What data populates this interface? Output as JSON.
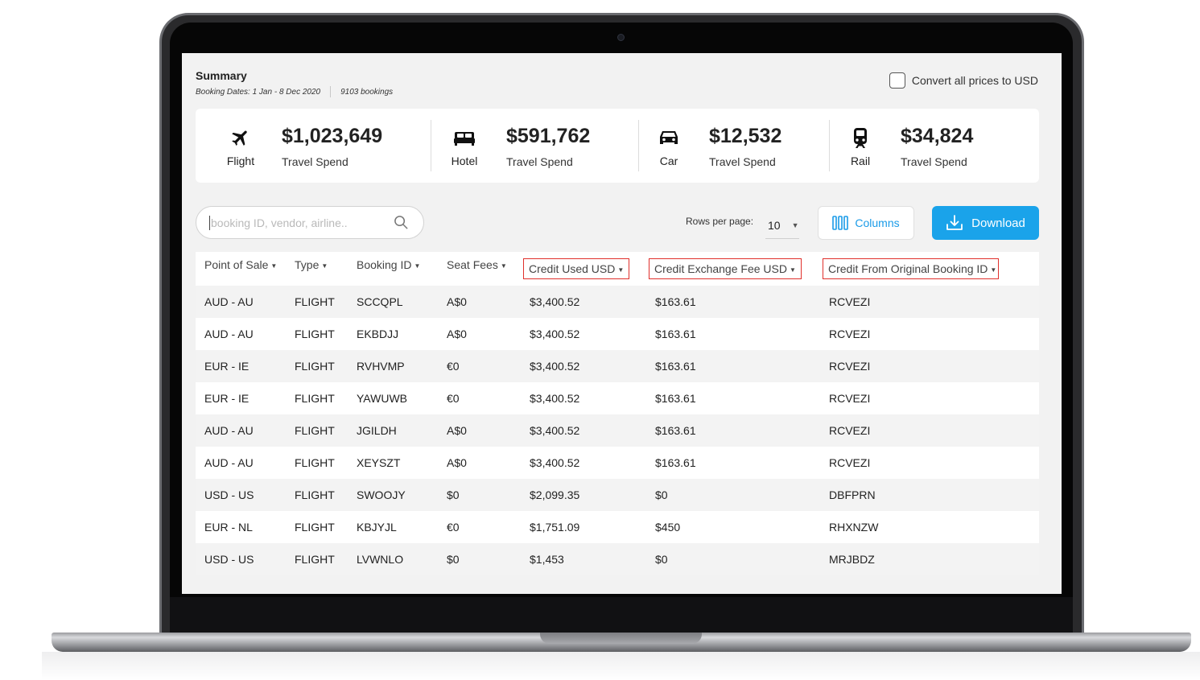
{
  "summary": {
    "title": "Summary",
    "booking_dates": "Booking Dates: 1 Jan - 8 Dec 2020",
    "booking_count": "9103 bookings"
  },
  "convert_usd": {
    "label": "Convert all prices to USD",
    "checked": false
  },
  "kpis": [
    {
      "icon": "airplane-icon",
      "label": "Flight",
      "amount": "$1,023,649",
      "sub": "Travel Spend"
    },
    {
      "icon": "bed-icon",
      "label": "Hotel",
      "amount": "$591,762",
      "sub": "Travel Spend"
    },
    {
      "icon": "car-icon",
      "label": "Car",
      "amount": "$12,532",
      "sub": "Travel Spend"
    },
    {
      "icon": "train-icon",
      "label": "Rail",
      "amount": "$34,824",
      "sub": "Travel Spend"
    }
  ],
  "search": {
    "placeholder": "booking ID, vendor, airline..",
    "value": ""
  },
  "pagination": {
    "rows_per_page_label": "Rows per page:",
    "rows_per_page": "10"
  },
  "toolbar": {
    "columns_label": "Columns",
    "download_label": "Download"
  },
  "table": {
    "columns": [
      {
        "label": "Point of Sale",
        "highlighted": false
      },
      {
        "label": "Type",
        "highlighted": false
      },
      {
        "label": "Booking ID",
        "highlighted": false
      },
      {
        "label": "Seat Fees",
        "highlighted": false
      },
      {
        "label": "Credit Used USD",
        "highlighted": true
      },
      {
        "label": "Credit Exchange Fee USD",
        "highlighted": true
      },
      {
        "label": "Credit From Original Booking ID",
        "highlighted": true
      }
    ],
    "rows": [
      [
        "AUD - AU",
        "FLIGHT",
        "SCCQPL",
        "A$0",
        "$3,400.52",
        "$163.61",
        "RCVEZI"
      ],
      [
        "AUD - AU",
        "FLIGHT",
        "EKBDJJ",
        "A$0",
        "$3,400.52",
        "$163.61",
        "RCVEZI"
      ],
      [
        "EUR - IE",
        "FLIGHT",
        "RVHVMP",
        "€0",
        "$3,400.52",
        "$163.61",
        "RCVEZI"
      ],
      [
        "EUR - IE",
        "FLIGHT",
        "YAWUWB",
        "€0",
        "$3,400.52",
        "$163.61",
        "RCVEZI"
      ],
      [
        "AUD - AU",
        "FLIGHT",
        "JGILDH",
        "A$0",
        "$3,400.52",
        "$163.61",
        "RCVEZI"
      ],
      [
        "AUD - AU",
        "FLIGHT",
        "XEYSZT",
        "A$0",
        "$3,400.52",
        "$163.61",
        "RCVEZI"
      ],
      [
        "USD - US",
        "FLIGHT",
        "SWOOJY",
        "$0",
        "$2,099.35",
        "$0",
        "DBFPRN"
      ],
      [
        "EUR - NL",
        "FLIGHT",
        "KBJYJL",
        "€0",
        "$1,751.09",
        "$450",
        "RHXNZW"
      ],
      [
        "USD - US",
        "FLIGHT",
        "LVWNLO",
        "$0",
        "$1,453",
        "$0",
        "MRJBDZ"
      ]
    ]
  },
  "colors": {
    "accent": "#1aa3ea",
    "highlight_border": "#e0302c",
    "screen_bg": "#f2f2f2"
  }
}
